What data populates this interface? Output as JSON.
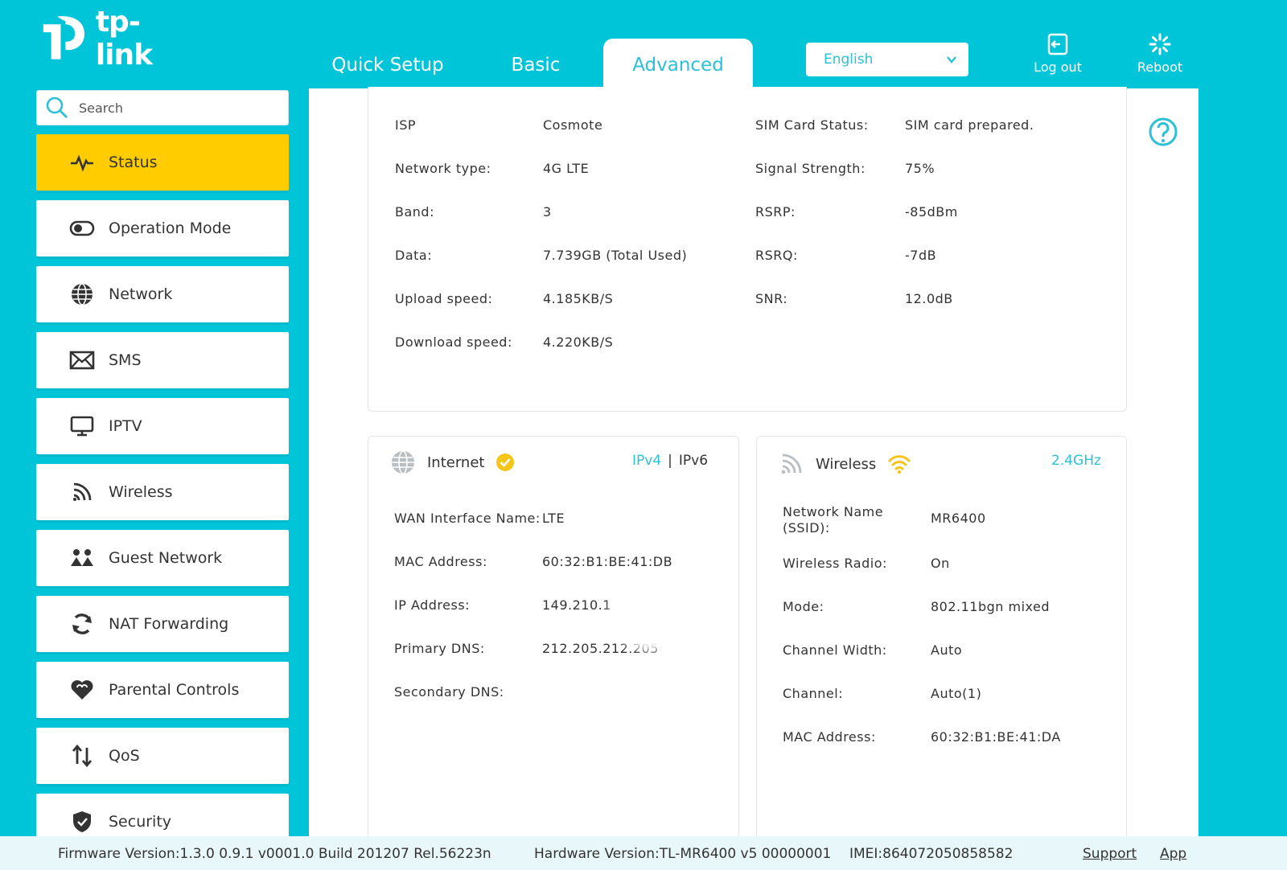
{
  "brand": {
    "name": "tp-link"
  },
  "nav": {
    "tabs": [
      {
        "label": "Quick Setup"
      },
      {
        "label": "Basic"
      },
      {
        "label": "Advanced"
      }
    ],
    "language": "English",
    "logout_label": "Log out",
    "reboot_label": "Reboot"
  },
  "search": {
    "placeholder": "Search"
  },
  "sidebar": {
    "items": [
      {
        "label": "Status",
        "icon": "pulse-icon"
      },
      {
        "label": "Operation Mode",
        "icon": "toggle-icon"
      },
      {
        "label": "Network",
        "icon": "globe-icon"
      },
      {
        "label": "SMS",
        "icon": "envelope-icon"
      },
      {
        "label": "IPTV",
        "icon": "monitor-icon"
      },
      {
        "label": "Wireless",
        "icon": "wifi-icon"
      },
      {
        "label": "Guest Network",
        "icon": "guests-icon"
      },
      {
        "label": "NAT Forwarding",
        "icon": "nat-icon"
      },
      {
        "label": "Parental Controls",
        "icon": "heart-icon"
      },
      {
        "label": "QoS",
        "icon": "updown-arrows-icon"
      },
      {
        "label": "Security",
        "icon": "shield-icon"
      }
    ]
  },
  "lte": {
    "left": [
      {
        "label": "ISP",
        "value": "Cosmote"
      },
      {
        "label": "Network type:",
        "value": "4G LTE"
      },
      {
        "label": "Band:",
        "value": "3"
      },
      {
        "label": "Data:",
        "value": "7.739GB (Total Used)"
      },
      {
        "label": "Upload speed:",
        "value": "4.185KB/S"
      },
      {
        "label": "Download speed:",
        "value": "4.220KB/S"
      }
    ],
    "right": [
      {
        "label": "SIM Card Status:",
        "value": "SIM card prepared."
      },
      {
        "label": "Signal Strength:",
        "value": "75%"
      },
      {
        "label": "RSRP:",
        "value": "-85dBm"
      },
      {
        "label": "RSRQ:",
        "value": "-7dB"
      },
      {
        "label": "SNR:",
        "value": "12.0dB"
      }
    ]
  },
  "internet": {
    "title": "Internet",
    "ipv4": "IPv4",
    "separator": "|",
    "ipv6": "IPv6",
    "rows": [
      {
        "label": "WAN Interface Name:",
        "value": "LTE"
      },
      {
        "label": "MAC Address:",
        "value": "60:32:B1:BE:41:DB"
      },
      {
        "label": "IP Address:",
        "value": "149.210.1"
      },
      {
        "label": "Primary DNS:",
        "value": "212.205.212.205"
      },
      {
        "label": "Secondary DNS:",
        "value": ""
      }
    ]
  },
  "wireless": {
    "title": "Wireless",
    "band": "2.4GHz",
    "ssid_label_1": "Network Name",
    "ssid_label_2": "(SSID):",
    "ssid_value": "MR6400",
    "rows": [
      {
        "label": "Wireless Radio:",
        "value": "On"
      },
      {
        "label": "Mode:",
        "value": "802.11bgn mixed"
      },
      {
        "label": "Channel Width:",
        "value": "Auto"
      },
      {
        "label": "Channel:",
        "value": "Auto(1)"
      },
      {
        "label": "MAC Address:",
        "value": "60:32:B1:BE:41:DA"
      }
    ]
  },
  "footer": {
    "firmware": "Firmware Version:1.3.0 0.9.1 v0001.0 Build 201207 Rel.56223n",
    "hardware": "Hardware Version:TL-MR6400 v5 00000001",
    "imei": "IMEI:864072050858582",
    "support": "Support",
    "app": "App"
  },
  "colors": {
    "accent": "#00c5d9",
    "active": "#ffcc00",
    "check": "#f5c518"
  }
}
